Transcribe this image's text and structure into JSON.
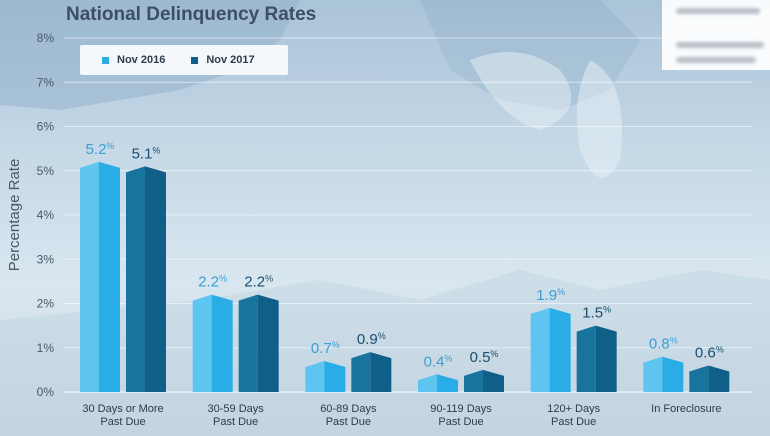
{
  "colors": {
    "nov2016_front": "#2aace6",
    "nov2016_side": "#5ec4f0",
    "nov2017_front": "#0f5f88",
    "nov2017_side": "#18739f",
    "label_2016": "#3a9fd6",
    "label_2017": "#1b4e70"
  },
  "chart_data": {
    "type": "bar",
    "title": "National Delinquency Rates",
    "ylabel": "Percentage Rate",
    "xlabel": "",
    "ylim": [
      0,
      8
    ],
    "yticks": [
      "0%",
      "1%",
      "2%",
      "3%",
      "4%",
      "5%",
      "6%",
      "7%",
      "8%"
    ],
    "grid": true,
    "legend_position": "top-left",
    "categories": [
      [
        "30 Days or More",
        "Past Due"
      ],
      [
        "30-59 Days",
        "Past Due"
      ],
      [
        "60-89 Days",
        "Past Due"
      ],
      [
        "90-119 Days",
        "Past Due"
      ],
      [
        "120+ Days",
        "Past Due"
      ],
      [
        "In Foreclosure"
      ]
    ],
    "series": [
      {
        "name": "Nov 2016",
        "values": [
          5.2,
          2.2,
          0.7,
          0.4,
          1.9,
          0.8
        ]
      },
      {
        "name": "Nov 2017",
        "values": [
          5.1,
          2.2,
          0.9,
          0.5,
          1.5,
          0.6
        ]
      }
    ]
  }
}
